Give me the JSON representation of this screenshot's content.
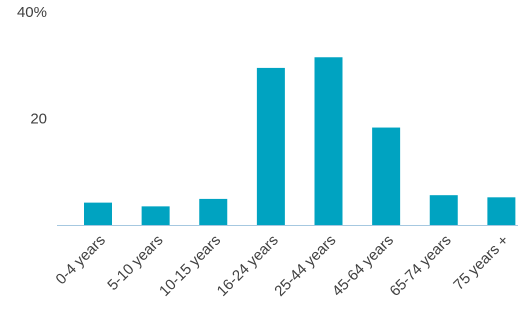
{
  "chart_data": {
    "type": "bar",
    "categories": [
      "0-4 years",
      "5-10 years",
      "10-15 years",
      "16-24 years",
      "25-44 years",
      "45-64 years",
      "65-74 years",
      "75 years +"
    ],
    "values": [
      4.2,
      3.5,
      4.9,
      29.5,
      31.5,
      18.3,
      5.6,
      5.2
    ],
    "ylim": [
      0,
      40
    ],
    "ytick_values": [
      20,
      40
    ],
    "ytick_labels": [
      "20",
      "40%"
    ],
    "xlabel": "",
    "ylabel": "",
    "title": "",
    "grid": false,
    "legend": false,
    "bar_color": "#00a3c1",
    "axis_color": "#a6c8e0"
  }
}
